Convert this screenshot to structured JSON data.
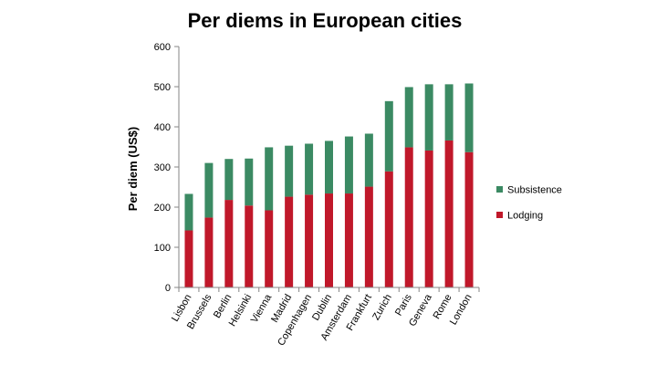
{
  "chart_data": {
    "type": "bar",
    "stacked": true,
    "title": "Per diems in European cities",
    "xlabel": "",
    "ylabel": "Per diem (US$)",
    "ylim": [
      0,
      600
    ],
    "yticks": [
      0,
      100,
      200,
      300,
      400,
      500,
      600
    ],
    "grid": false,
    "legend_position": "right",
    "categories": [
      "Lisbon",
      "Brussels",
      "Berlin",
      "Helsinki",
      "Vienna",
      "Madrid",
      "Copenhagen",
      "Dublin",
      "Amsterdam",
      "Frankfurt",
      "Zurich",
      "Paris",
      "Geneva",
      "Rome",
      "London"
    ],
    "series": [
      {
        "name": "Lodging",
        "color": "#c0182a",
        "values": [
          142,
          174,
          218,
          204,
          192,
          226,
          231,
          234,
          234,
          251,
          289,
          349,
          341,
          366,
          337
        ]
      },
      {
        "name": "Subsistence",
        "color": "#3b8a63",
        "values": [
          91,
          136,
          102,
          117,
          157,
          127,
          127,
          131,
          142,
          132,
          175,
          150,
          165,
          140,
          171
        ]
      }
    ],
    "legend_order": [
      "Subsistence",
      "Lodging"
    ]
  }
}
